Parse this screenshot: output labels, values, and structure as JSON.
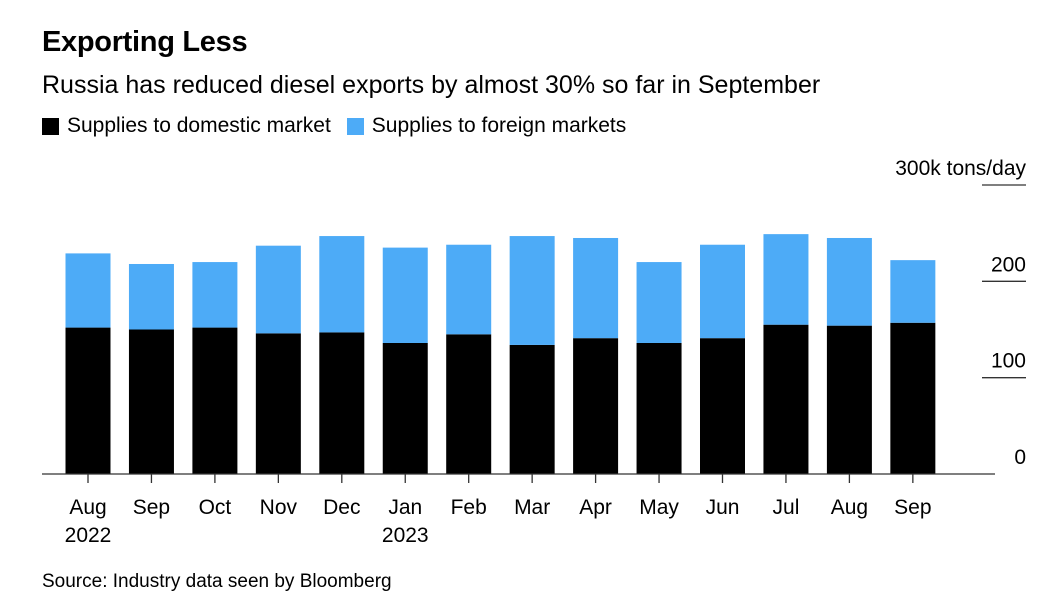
{
  "title": "Exporting Less",
  "subtitle": "Russia has reduced diesel exports by almost 30% so far in September",
  "source": "Source: Industry data seen by Bloomberg",
  "colors": {
    "domestic": "#000000",
    "foreign": "#4dabf7"
  },
  "chart_data": {
    "type": "bar",
    "stacked": true,
    "title": "Exporting Less",
    "subtitle": "Russia has reduced diesel exports by almost 30% so far in September",
    "categories": [
      "Aug 2022",
      "Sep",
      "Oct",
      "Nov",
      "Dec",
      "Jan 2023",
      "Feb",
      "Mar",
      "Apr",
      "May",
      "Jun",
      "Jul",
      "Aug",
      "Sep"
    ],
    "x_tick_labels": [
      {
        "line1": "Aug",
        "line2": "2022"
      },
      {
        "line1": "Sep",
        "line2": ""
      },
      {
        "line1": "Oct",
        "line2": ""
      },
      {
        "line1": "Nov",
        "line2": ""
      },
      {
        "line1": "Dec",
        "line2": ""
      },
      {
        "line1": "Jan",
        "line2": "2023"
      },
      {
        "line1": "Feb",
        "line2": ""
      },
      {
        "line1": "Mar",
        "line2": ""
      },
      {
        "line1": "Apr",
        "line2": ""
      },
      {
        "line1": "May",
        "line2": ""
      },
      {
        "line1": "Jun",
        "line2": ""
      },
      {
        "line1": "Jul",
        "line2": ""
      },
      {
        "line1": "Aug",
        "line2": ""
      },
      {
        "line1": "Sep",
        "line2": ""
      }
    ],
    "series": [
      {
        "name": "Supplies to domestic market",
        "color": "#000000",
        "values": [
          152,
          150,
          152,
          146,
          147,
          136,
          145,
          134,
          141,
          136,
          141,
          155,
          154,
          157
        ]
      },
      {
        "name": "Supplies to foreign markets",
        "color": "#4dabf7",
        "values": [
          77,
          68,
          68,
          91,
          100,
          99,
          93,
          113,
          104,
          84,
          97,
          94,
          91,
          65
        ]
      }
    ],
    "ylabel": "k tons/day",
    "ylim": [
      0,
      300
    ],
    "y_ticks": [
      {
        "value": 0,
        "label": "0"
      },
      {
        "value": 100,
        "label": "100"
      },
      {
        "value": 200,
        "label": "200"
      },
      {
        "value": 300,
        "label": "300k tons/day"
      }
    ],
    "y_axis_side": "right",
    "legend_position": "top-left",
    "grid": false
  }
}
